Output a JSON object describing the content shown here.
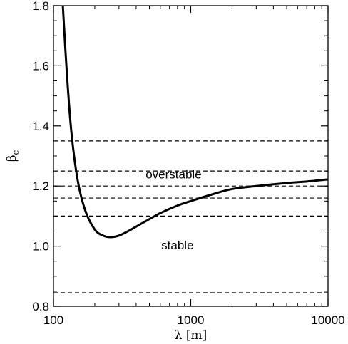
{
  "chart_data": {
    "type": "line",
    "title": "",
    "xlabel": "λ [m]",
    "ylabel_main": "β",
    "ylabel_sub": "c",
    "xscale": "log",
    "xlim": [
      100,
      10000
    ],
    "ylim": [
      0.8,
      1.8
    ],
    "xticks": [
      {
        "value": 100,
        "label": "100"
      },
      {
        "value": 1000,
        "label": "1000"
      },
      {
        "value": 10000,
        "label": "10000"
      }
    ],
    "yticks": [
      {
        "value": 0.8,
        "label": "0.8"
      },
      {
        "value": 1.0,
        "label": "1.0"
      },
      {
        "value": 1.2,
        "label": "1.2"
      },
      {
        "value": 1.4,
        "label": "1.4"
      },
      {
        "value": 1.6,
        "label": "1.6"
      },
      {
        "value": 1.8,
        "label": "1.8"
      }
    ],
    "grid": false,
    "curve": {
      "x": [
        117,
        125,
        135,
        150,
        170,
        200,
        230,
        260,
        300,
        350,
        400,
        500,
        600,
        800,
        1000,
        1500,
        2000,
        3000,
        5000,
        7000,
        10000
      ],
      "y": [
        1.8,
        1.58,
        1.38,
        1.22,
        1.12,
        1.055,
        1.035,
        1.03,
        1.035,
        1.05,
        1.065,
        1.09,
        1.11,
        1.135,
        1.15,
        1.175,
        1.19,
        1.2,
        1.21,
        1.215,
        1.222
      ]
    },
    "hlines": [
      1.35,
      1.25,
      1.2,
      1.16,
      1.1,
      0.845
    ],
    "annotations": [
      {
        "text": "overstable",
        "x": 750,
        "y": 1.225
      },
      {
        "text": "stable",
        "x": 800,
        "y": 0.99
      }
    ]
  }
}
